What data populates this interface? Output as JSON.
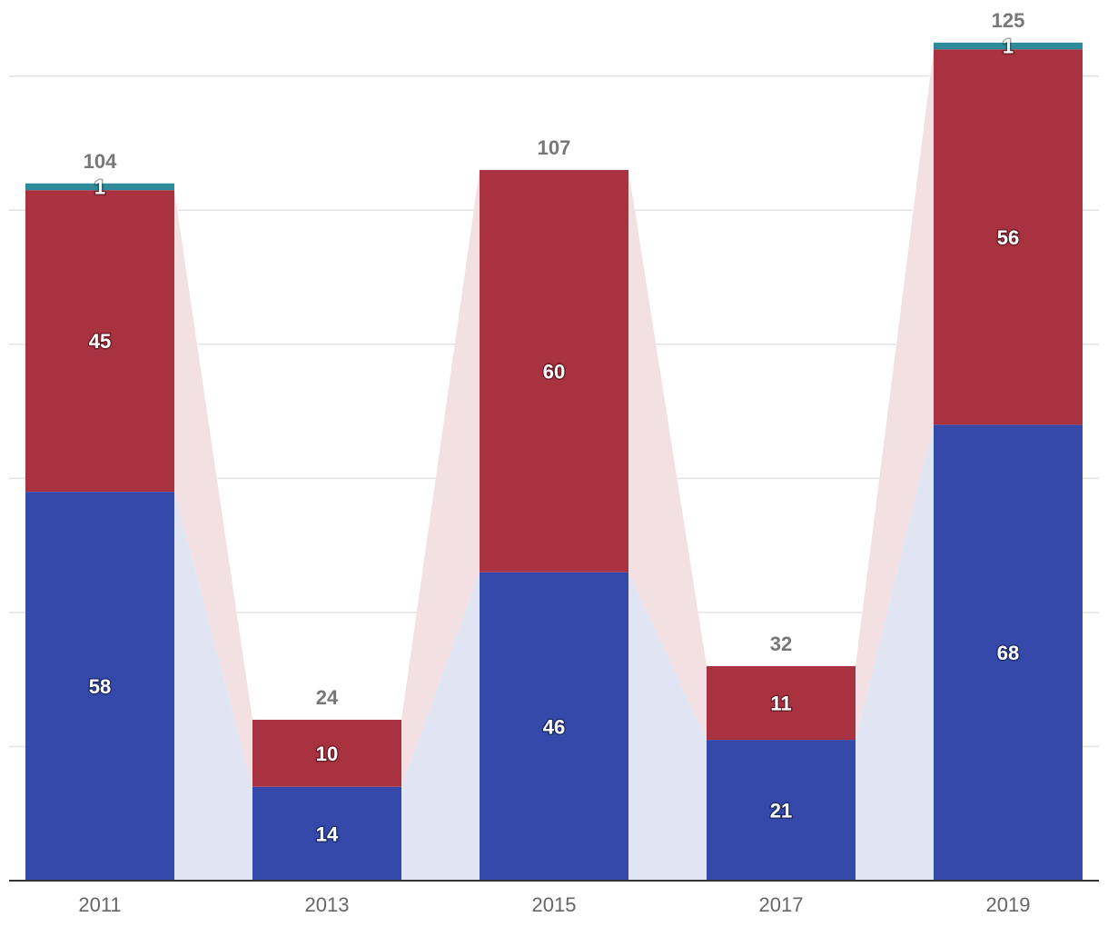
{
  "chart_data": {
    "type": "bar",
    "stacked": true,
    "categories": [
      "2011",
      "2013",
      "2015",
      "2017",
      "2019"
    ],
    "series": [
      {
        "values": [
          58,
          14,
          46,
          21,
          68
        ],
        "color": "#3449aa",
        "band_color": "#e1e4f2"
      },
      {
        "values": [
          45,
          10,
          60,
          11,
          56
        ],
        "color": "#a93240",
        "band_color": "#f3e0e2"
      },
      {
        "values": [
          1,
          0,
          0,
          0,
          1
        ],
        "color": "#2e8b9a",
        "band_color": "#ffffff"
      }
    ],
    "totals": [
      104,
      24,
      107,
      32,
      125
    ],
    "ylim": [
      0,
      130
    ],
    "grid": true,
    "title": "",
    "xlabel": "",
    "ylabel": ""
  }
}
